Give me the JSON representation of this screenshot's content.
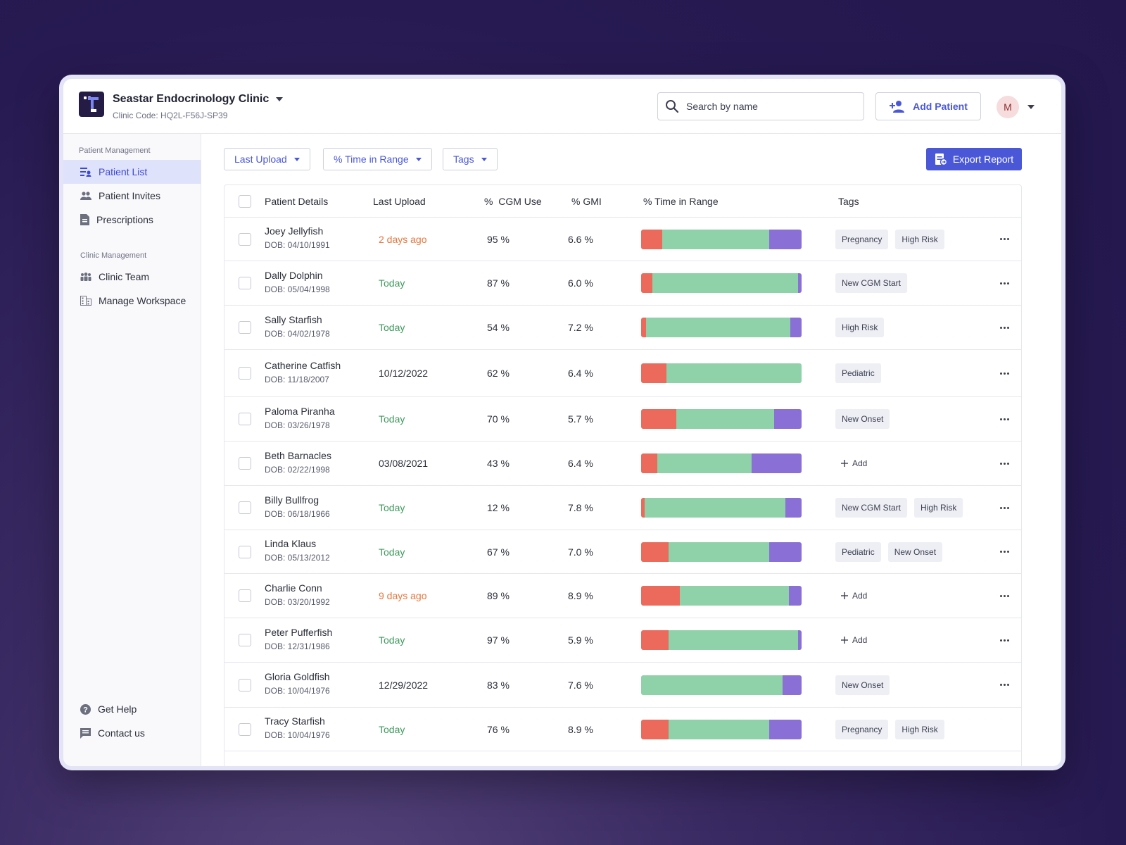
{
  "header": {
    "clinic_name": "Seastar Endocrinology Clinic",
    "clinic_code": "Clinic Code: HQ2L-F56J-SP39",
    "search_placeholder": "Search by name",
    "add_patient_label": "Add Patient",
    "avatar_initial": "M"
  },
  "sidebar": {
    "section1": "Patient Management",
    "items1": [
      {
        "label": "Patient List",
        "icon": "list-icon",
        "active": true
      },
      {
        "label": "Patient Invites",
        "icon": "people-icon"
      },
      {
        "label": "Prescriptions",
        "icon": "document-icon"
      }
    ],
    "section2": "Clinic Management",
    "items2": [
      {
        "label": "Clinic Team",
        "icon": "team-icon"
      },
      {
        "label": "Manage Workspace",
        "icon": "building-icon"
      }
    ],
    "footer": [
      {
        "label": "Get Help",
        "icon": "help-icon"
      },
      {
        "label": "Contact us",
        "icon": "chat-icon"
      }
    ]
  },
  "filters": {
    "last_upload": "Last Upload",
    "time_in_range": "% Time in Range",
    "tags": "Tags",
    "export": "Export Report"
  },
  "table": {
    "headers": {
      "details": "Patient Details",
      "upload": "Last Upload",
      "cgm": "%  CGM Use",
      "gmi": "% GMI",
      "tir": "% Time in Range",
      "tags": "Tags"
    },
    "add_label": "Add",
    "colors": {
      "low": "#ec6a5c",
      "in_range": "#8fd1a8",
      "high": "#8a6fd6"
    },
    "rows": [
      {
        "name": "Joey Jellyfish",
        "dob": "DOB: 04/10/1991",
        "upload": "2 days ago",
        "upload_status": "ago",
        "cgm": "95 %",
        "gmi": "6.6 %",
        "tir": [
          0.13,
          0.67,
          0.2
        ],
        "tags": [
          "Pregnancy",
          "High Risk"
        ]
      },
      {
        "name": "Dally Dolphin",
        "dob": "DOB: 05/04/1998",
        "upload": "Today",
        "upload_status": "today",
        "cgm": "87 %",
        "gmi": "6.0 %",
        "tir": [
          0.07,
          0.91,
          0.02
        ],
        "tags": [
          "New CGM Start"
        ]
      },
      {
        "name": "Sally Starfish",
        "dob": "DOB: 04/02/1978",
        "upload": "Today",
        "upload_status": "today",
        "cgm": "54 %",
        "gmi": "7.2 %",
        "tir": [
          0.03,
          0.9,
          0.07
        ],
        "tags": [
          "High Risk"
        ]
      },
      {
        "name": "Catherine Catfish",
        "dob": "DOB: 11/18/2007",
        "upload": "10/12/2022",
        "upload_status": "date",
        "cgm": "62 %",
        "gmi": "6.4 %",
        "tir": [
          0.16,
          0.84,
          0.0
        ],
        "tags": [
          "Pediatric"
        ]
      },
      {
        "name": "Paloma Piranha",
        "dob": "DOB: 03/26/1978",
        "upload": "Today",
        "upload_status": "today",
        "cgm": "70 %",
        "gmi": "5.7 %",
        "tir": [
          0.22,
          0.61,
          0.17
        ],
        "tags": [
          "New Onset"
        ]
      },
      {
        "name": "Beth Barnacles",
        "dob": "DOB: 02/22/1998",
        "upload": "03/08/2021",
        "upload_status": "date",
        "cgm": "43 %",
        "gmi": "6.4 %",
        "tir": [
          0.1,
          0.59,
          0.31
        ],
        "tags": []
      },
      {
        "name": "Billy Bullfrog",
        "dob": "DOB: 06/18/1966",
        "upload": "Today",
        "upload_status": "today",
        "cgm": "12 %",
        "gmi": "7.8 %",
        "tir": [
          0.02,
          0.88,
          0.1
        ],
        "tags": [
          "New CGM Start",
          "High Risk"
        ]
      },
      {
        "name": "Linda Klaus",
        "dob": "DOB: 05/13/2012",
        "upload": "Today",
        "upload_status": "today",
        "cgm": "67 %",
        "gmi": "7.0 %",
        "tir": [
          0.17,
          0.63,
          0.2
        ],
        "tags": [
          "Pediatric",
          "New Onset"
        ]
      },
      {
        "name": "Charlie Conn",
        "dob": "DOB: 03/20/1992",
        "upload": "9 days ago",
        "upload_status": "ago",
        "cgm": "89 %",
        "gmi": "8.9 %",
        "tir": [
          0.24,
          0.68,
          0.08
        ],
        "tags": []
      },
      {
        "name": "Peter Pufferfish",
        "dob": "DOB: 12/31/1986",
        "upload": "Today",
        "upload_status": "today",
        "cgm": "97 %",
        "gmi": "5.9 %",
        "tir": [
          0.17,
          0.81,
          0.02
        ],
        "tags": []
      },
      {
        "name": "Gloria Goldfish",
        "dob": "DOB: 10/04/1976",
        "upload": "12/29/2022",
        "upload_status": "date",
        "cgm": "83 %",
        "gmi": "7.6 %",
        "tir": [
          0.0,
          0.88,
          0.12
        ],
        "tags": [
          "New Onset"
        ]
      },
      {
        "name": "Tracy Starfish",
        "dob": "DOB: 10/04/1976",
        "upload": "Today",
        "upload_status": "today",
        "cgm": "76 %",
        "gmi": "8.9 %",
        "tir": [
          0.17,
          0.63,
          0.2
        ],
        "tags": [
          "Pregnancy",
          "High Risk"
        ]
      }
    ]
  }
}
